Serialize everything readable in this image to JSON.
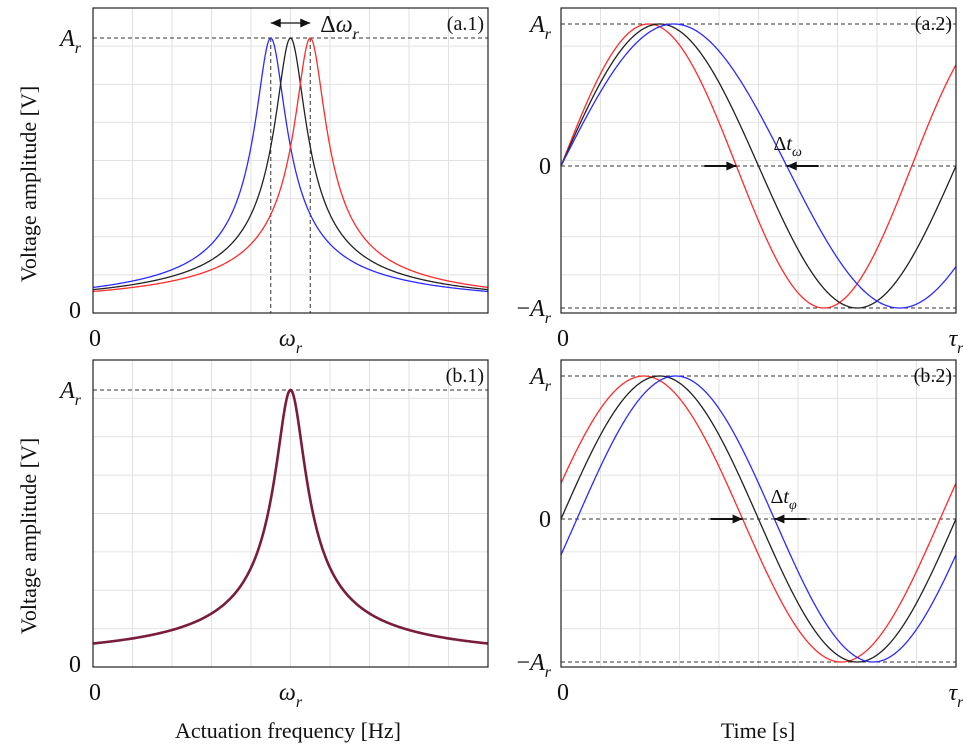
{
  "figure": {
    "x_label_left": "Actuation frequency [Hz]",
    "x_label_right": "Time [s]",
    "y_label": "Voltage amplitude [V]"
  },
  "chart_data": [
    {
      "id": "a1",
      "panel_label": "(a.1)",
      "type": "line",
      "grid": true,
      "x_unit": "omega_r",
      "xlim": [
        0,
        2
      ],
      "ylim": [
        0,
        1.07
      ],
      "x_ticks": [
        {
          "value": 0,
          "label": "0"
        },
        {
          "value": 1,
          "label": "ω_r"
        }
      ],
      "y_ticks": [
        {
          "value": 0,
          "label": "0"
        },
        {
          "value": 1,
          "label": "A_r"
        }
      ],
      "annotation": "Δω_r",
      "shift": 0.1,
      "series": [
        {
          "color": "#2b2bff",
          "peak_at": 0.9,
          "peak_value": 1.0
        },
        {
          "color": "#222222",
          "peak_at": 1.0,
          "peak_value": 1.0
        },
        {
          "color": "#ff2b2b",
          "peak_at": 1.1,
          "peak_value": 1.0
        }
      ]
    },
    {
      "id": "a2",
      "panel_label": "(a.2)",
      "type": "line",
      "grid": true,
      "x_unit": "tau_r",
      "xlim": [
        0,
        1
      ],
      "ylim": [
        -1,
        1
      ],
      "x_ticks": [
        {
          "value": 0,
          "label": "0"
        },
        {
          "value": 1,
          "label": "τ_r"
        }
      ],
      "y_ticks": [
        {
          "value": 1,
          "label": "A_r"
        },
        {
          "value": 0,
          "label": "0"
        },
        {
          "value": -1,
          "label": "−A_r"
        }
      ],
      "annotation": "Δt_ω",
      "series": [
        {
          "color": "#ff2b2b",
          "period": 0.888,
          "phase_deg": 0
        },
        {
          "color": "#222222",
          "period": 1.0,
          "phase_deg": 0
        },
        {
          "color": "#2b2bff",
          "period": 1.143,
          "phase_deg": 0
        }
      ]
    },
    {
      "id": "b1",
      "panel_label": "(b.1)",
      "type": "line",
      "grid": true,
      "x_unit": "omega_r",
      "xlim": [
        0,
        2
      ],
      "ylim": [
        0,
        1.07
      ],
      "x_ticks": [
        {
          "value": 0,
          "label": "0"
        },
        {
          "value": 1,
          "label": "ω_r"
        }
      ],
      "y_ticks": [
        {
          "value": 0,
          "label": "0"
        },
        {
          "value": 1,
          "label": "A_r"
        }
      ],
      "series": [
        {
          "color": "#7a1d3a",
          "peak_at": 1.0,
          "peak_value": 1.0
        }
      ]
    },
    {
      "id": "b2",
      "panel_label": "(b.2)",
      "type": "line",
      "grid": true,
      "x_unit": "tau_r",
      "xlim": [
        0,
        1
      ],
      "ylim": [
        -1,
        1
      ],
      "x_ticks": [
        {
          "value": 0,
          "label": "0"
        },
        {
          "value": 1,
          "label": "τ_r"
        }
      ],
      "y_ticks": [
        {
          "value": 1,
          "label": "A_r"
        },
        {
          "value": 0,
          "label": "0"
        },
        {
          "value": -1,
          "label": "−A_r"
        }
      ],
      "annotation": "Δt_φ",
      "series": [
        {
          "color": "#ff2b2b",
          "period": 1.0,
          "phase_deg": 14.5
        },
        {
          "color": "#222222",
          "period": 1.0,
          "phase_deg": 0
        },
        {
          "color": "#2b2bff",
          "period": 1.0,
          "phase_deg": -14.5
        }
      ]
    }
  ]
}
